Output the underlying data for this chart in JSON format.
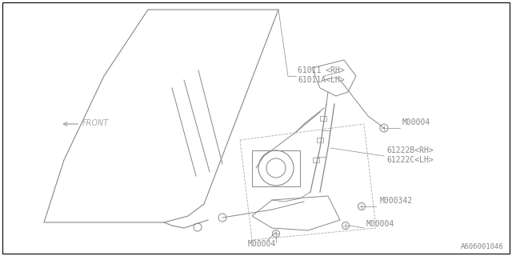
{
  "background_color": "#ffffff",
  "border_color": "#000000",
  "diagram_id": "A606001046",
  "labels": {
    "part1_line1": "61011 <RH>",
    "part1_line2": "61011A<LH>",
    "part2_line1": "61222B<RH>",
    "part2_line2": "61222C<LH>",
    "bolt_upper": "M00004",
    "bolt_middle": "M000342",
    "bolt_bottom_left": "M00004",
    "bolt_bottom_right": "M00004",
    "front_label": "FRONT"
  },
  "line_color": "#888888",
  "label_color": "#888888",
  "font_size_label": 7,
  "font_size_id": 6.5
}
